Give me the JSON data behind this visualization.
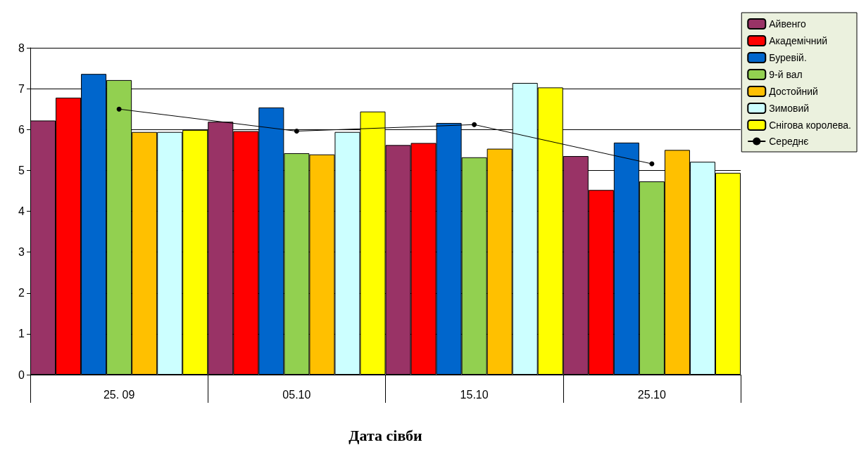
{
  "chart_data": {
    "type": "bar",
    "xlabel": "Дата сівби",
    "categories": [
      "25. 09",
      "05.10",
      "15.10",
      "25.10"
    ],
    "series": [
      {
        "name": "Айвенго",
        "color": "#993366",
        "values": [
          6.22,
          6.19,
          5.62,
          5.35
        ]
      },
      {
        "name": "Академічний",
        "color": "#ff0000",
        "values": [
          6.78,
          5.96,
          5.67,
          4.52
        ]
      },
      {
        "name": "Буревій.",
        "color": "#0066cc",
        "values": [
          7.36,
          6.54,
          6.16,
          5.68
        ]
      },
      {
        "name": "9-й вал",
        "color": "#92d050",
        "values": [
          7.21,
          5.42,
          5.32,
          4.73
        ]
      },
      {
        "name": "Достойний",
        "color": "#ffc000",
        "values": [
          5.94,
          5.39,
          5.53,
          5.5
        ]
      },
      {
        "name": "Зимовий",
        "color": "#ccffff",
        "values": [
          5.94,
          5.94,
          7.14,
          5.21
        ]
      },
      {
        "name": "Снігова королева.",
        "color": "#ffff00",
        "values": [
          5.99,
          6.44,
          7.03,
          4.94
        ]
      },
      {
        "name": "Середнє",
        "color": "#000000",
        "type": "line",
        "marker": "circle",
        "values": [
          6.5,
          5.96,
          6.12,
          5.16
        ]
      }
    ],
    "ylim": [
      0,
      8
    ],
    "yticks": [
      0,
      1,
      2,
      3,
      4,
      5,
      6,
      7,
      8
    ],
    "grid": "y",
    "legend": "top right"
  }
}
